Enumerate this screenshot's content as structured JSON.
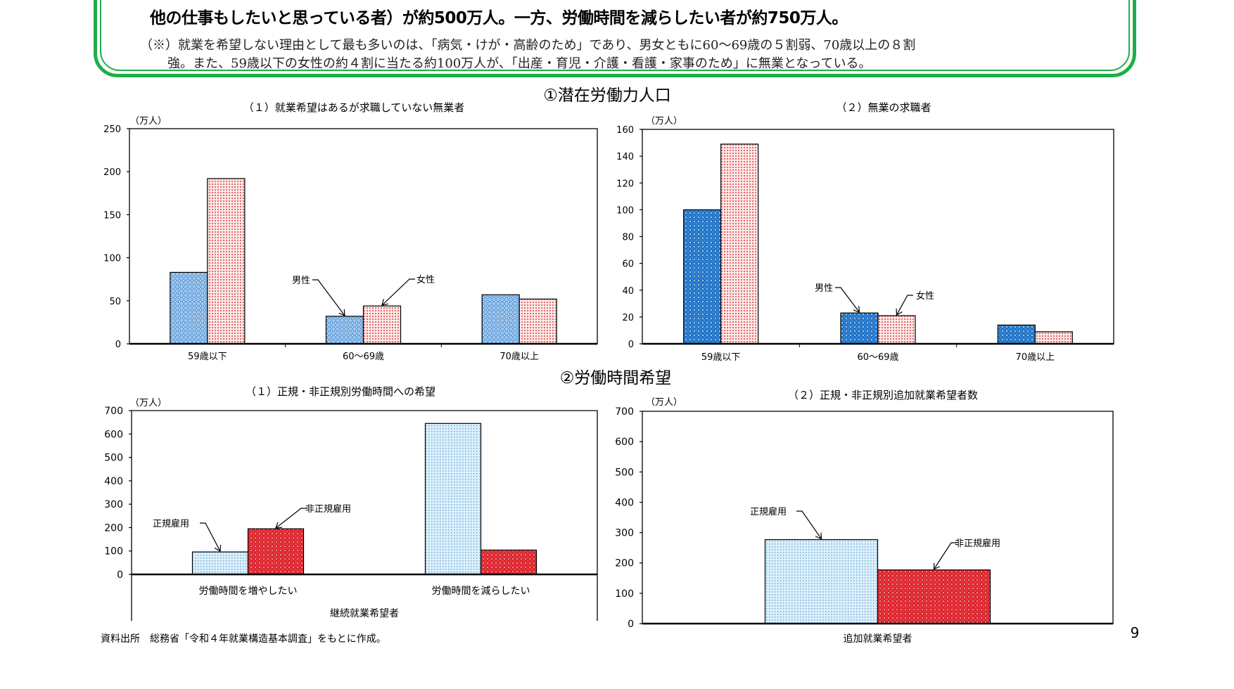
{
  "banner": {
    "line1": "他の仕事もしたいと思っている者）が約500万人。一方、労働時間を減らしたい者が約750万人。",
    "line2": "（※）就業を希望しない理由として最も多いのは、「病気・けが・高齢のため」であり、男女ともに60～69歳の５割弱、70歳以上の８割",
    "line3": "強。また、59歳以下の女性の約４割に当たる約100万人が、「出産・育児・介護・看護・家事のため」に無業となっている。"
  },
  "sections": {
    "s1": "①潜在労働力人口",
    "s2": "②労働時間希望"
  },
  "source": "資料出所　総務省「令和４年就業構造基本調査」をもとに作成。",
  "page_number": "9",
  "colors": {
    "frame_green": "#1fae4b",
    "male_blue": "#3a8ad6",
    "female_red": "#e05a5a",
    "regular_lightblue": "#cfe6f6",
    "nonregular_red": "#e8343c"
  },
  "chart_data": [
    {
      "type": "bar",
      "title": "（１）就業希望はあるが求職していない無業者",
      "ylabel": "（万人）",
      "xlabel": "",
      "ylim": [
        0,
        250
      ],
      "yticks": [
        "0",
        "50",
        "100",
        "150",
        "200",
        "250"
      ],
      "categories": [
        "59歳以下",
        "60～69歳",
        "70歳以上"
      ],
      "series": [
        {
          "name": "男性",
          "values": [
            83,
            32,
            57
          ]
        },
        {
          "name": "女性",
          "values": [
            192,
            44,
            52
          ]
        }
      ],
      "grid": false
    },
    {
      "type": "bar",
      "title": "（２）無業の求職者",
      "ylabel": "（万人）",
      "xlabel": "",
      "ylim": [
        0,
        160
      ],
      "yticks": [
        "0",
        "20",
        "40",
        "60",
        "80",
        "100",
        "120",
        "140",
        "160"
      ],
      "categories": [
        "59歳以下",
        "60～69歳",
        "70歳以上"
      ],
      "series": [
        {
          "name": "男性",
          "values": [
            100,
            23,
            14
          ]
        },
        {
          "name": "女性",
          "values": [
            149,
            21,
            9
          ]
        }
      ],
      "grid": false
    },
    {
      "type": "bar",
      "title": "（１）正規・非正規別労働時間への希望",
      "ylabel": "（万人）",
      "xlabel": "継続就業希望者",
      "ylim": [
        0,
        700
      ],
      "yticks": [
        "0",
        "100",
        "200",
        "300",
        "400",
        "500",
        "600",
        "700"
      ],
      "categories": [
        "労働時間を増やしたい",
        "労働時間を減らしたい"
      ],
      "series": [
        {
          "name": "正規雇用",
          "values": [
            96,
            645
          ]
        },
        {
          "name": "非正規雇用",
          "values": [
            195,
            104
          ]
        }
      ],
      "grid": false
    },
    {
      "type": "bar",
      "title": "（２）正規・非正規別追加就業希望者数",
      "ylabel": "（万人）",
      "xlabel": "",
      "ylim": [
        0,
        700
      ],
      "yticks": [
        "0",
        "100",
        "200",
        "300",
        "400",
        "500",
        "600",
        "700"
      ],
      "categories": [
        "追加就業希望者"
      ],
      "series": [
        {
          "name": "正規雇用",
          "values": [
            277
          ]
        },
        {
          "name": "非正規雇用",
          "values": [
            177
          ]
        }
      ],
      "grid": false
    }
  ]
}
